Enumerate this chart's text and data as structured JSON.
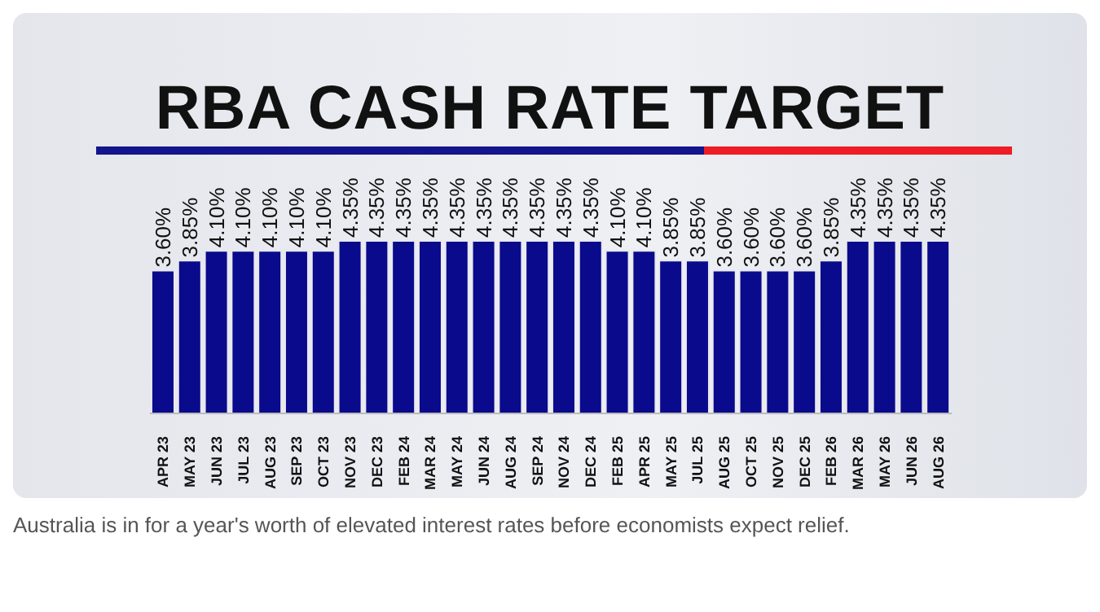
{
  "chart_data": {
    "type": "bar",
    "title": "RBA CASH RATE TARGET",
    "categories": [
      "APR 23",
      "MAY 23",
      "JUN 23",
      "JUL 23",
      "AUG 23",
      "SEP 23",
      "OCT 23",
      "NOV 23",
      "DEC 23",
      "FEB 24",
      "MAR 24",
      "MAY 24",
      "JUN 24",
      "AUG 24",
      "SEP 24",
      "NOV 24",
      "DEC 24",
      "FEB 25",
      "APR 25",
      "MAY 25",
      "JUL 25",
      "AUG 25",
      "OCT 25",
      "NOV 25",
      "DEC 25",
      "FEB 26",
      "MAR 26",
      "MAY 26",
      "JUN 26",
      "AUG 26"
    ],
    "values": [
      3.6,
      3.85,
      4.1,
      4.1,
      4.1,
      4.1,
      4.1,
      4.35,
      4.35,
      4.35,
      4.35,
      4.35,
      4.35,
      4.35,
      4.35,
      4.35,
      4.35,
      4.1,
      4.1,
      3.85,
      3.85,
      3.6,
      3.6,
      3.6,
      3.6,
      3.85,
      4.35,
      4.35,
      4.35,
      4.35
    ],
    "value_labels": [
      "3.60%",
      "3.85%",
      "4.10%",
      "4.10%",
      "4.10%",
      "4.10%",
      "4.10%",
      "4.35%",
      "4.35%",
      "4.35%",
      "4.35%",
      "4.35%",
      "4.35%",
      "4.35%",
      "4.35%",
      "4.35%",
      "4.35%",
      "4.10%",
      "4.10%",
      "3.85%",
      "3.85%",
      "3.60%",
      "3.60%",
      "3.60%",
      "3.60%",
      "3.85%",
      "4.35%",
      "4.35%",
      "4.35%",
      "4.35%"
    ],
    "color": "#0a0a8c",
    "annotations": [
      "Australia is in for a year's worth of elevated interest rates before economists expect relief."
    ]
  }
}
